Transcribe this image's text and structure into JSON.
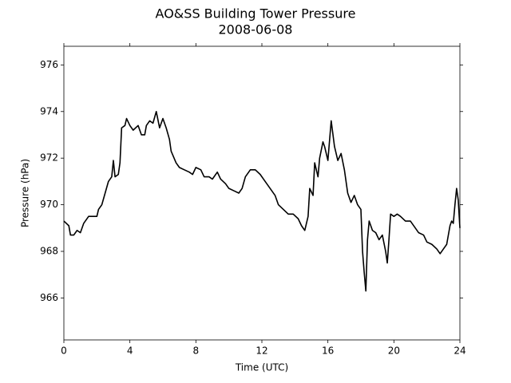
{
  "chart_data": {
    "type": "line",
    "title": "AO&SS Building Tower Pressure",
    "subtitle": "2008-06-08",
    "x_label": "Time (UTC)",
    "y_label": "Pressure (hPa)",
    "color": "#000000",
    "grid": false,
    "xlim": [
      0,
      24
    ],
    "xticks": [
      0,
      4,
      8,
      12,
      16,
      20,
      24
    ],
    "ylim": [
      964.2,
      976.8
    ],
    "yticks": [
      966,
      968,
      970,
      972,
      974,
      976
    ],
    "x": [
      0,
      0.3,
      0.4,
      0.6,
      0.8,
      1.0,
      1.2,
      1.5,
      1.8,
      2.0,
      2.1,
      2.3,
      2.5,
      2.7,
      2.9,
      3.0,
      3.1,
      3.3,
      3.4,
      3.5,
      3.7,
      3.8,
      4.0,
      4.2,
      4.5,
      4.7,
      4.9,
      5.0,
      5.2,
      5.4,
      5.6,
      5.8,
      6.0,
      6.2,
      6.4,
      6.5,
      6.8,
      7.0,
      7.3,
      7.6,
      7.8,
      8.0,
      8.3,
      8.5,
      8.8,
      9.0,
      9.3,
      9.5,
      9.8,
      10.0,
      10.3,
      10.6,
      10.8,
      11.0,
      11.3,
      11.6,
      11.9,
      12.2,
      12.5,
      12.8,
      13.0,
      13.3,
      13.6,
      13.9,
      14.2,
      14.4,
      14.6,
      14.8,
      14.9,
      15.1,
      15.2,
      15.4,
      15.5,
      15.7,
      15.8,
      16.0,
      16.2,
      16.4,
      16.6,
      16.8,
      17.0,
      17.2,
      17.4,
      17.6,
      17.8,
      18.0,
      18.1,
      18.2,
      18.3,
      18.4,
      18.5,
      18.7,
      18.9,
      19.1,
      19.3,
      19.5,
      19.6,
      19.7,
      19.8,
      20.0,
      20.2,
      20.4,
      20.7,
      21.0,
      21.3,
      21.5,
      21.8,
      22.0,
      22.3,
      22.6,
      22.8,
      23.0,
      23.2,
      23.4,
      23.5,
      23.6,
      23.7,
      23.8,
      23.9,
      24.0
    ],
    "values": [
      969.3,
      969.1,
      968.7,
      968.7,
      968.9,
      968.8,
      969.2,
      969.5,
      969.5,
      969.5,
      969.8,
      970.0,
      970.5,
      971.0,
      971.2,
      971.9,
      971.2,
      971.3,
      971.8,
      973.3,
      973.4,
      973.7,
      973.4,
      973.2,
      973.4,
      973.0,
      973.0,
      973.4,
      973.6,
      973.5,
      974.0,
      973.3,
      973.7,
      973.3,
      972.8,
      972.3,
      971.8,
      971.6,
      971.5,
      971.4,
      971.3,
      971.6,
      971.5,
      971.2,
      971.2,
      971.1,
      971.4,
      971.1,
      970.9,
      970.7,
      970.6,
      970.5,
      970.7,
      971.2,
      971.5,
      971.5,
      971.3,
      971.0,
      970.7,
      970.4,
      970.0,
      969.8,
      969.6,
      969.6,
      969.4,
      969.1,
      968.9,
      969.5,
      970.7,
      970.4,
      971.8,
      971.2,
      972.0,
      972.7,
      972.5,
      971.9,
      973.6,
      972.5,
      971.9,
      972.2,
      971.5,
      970.5,
      970.1,
      970.4,
      970.0,
      969.8,
      968.0,
      967.1,
      966.3,
      968.5,
      969.3,
      968.9,
      968.8,
      968.5,
      968.7,
      968.0,
      967.5,
      968.5,
      969.6,
      969.5,
      969.6,
      969.5,
      969.3,
      969.3,
      969.0,
      968.8,
      968.7,
      968.4,
      968.3,
      968.1,
      967.9,
      968.1,
      968.3,
      969.1,
      969.3,
      969.2,
      970.0,
      970.7,
      970.2,
      969.0
    ]
  }
}
